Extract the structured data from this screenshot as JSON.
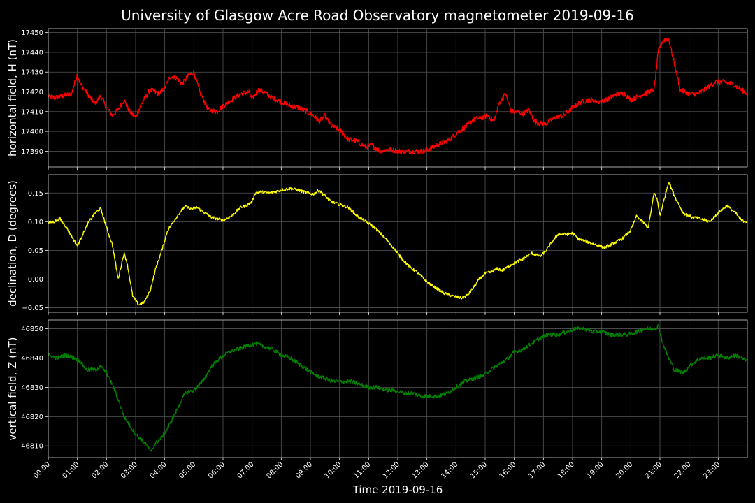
{
  "chart_data": {
    "type": "line",
    "title": "University of Glasgow Acre Road Observatory magnetometer 2019-09-16",
    "xlabel": "Time 2019-09-16",
    "x_ticks": [
      "00:00",
      "01:00",
      "02:00",
      "03:00",
      "04:00",
      "05:00",
      "06:00",
      "07:00",
      "08:00",
      "09:00",
      "10:00",
      "11:00",
      "12:00",
      "13:00",
      "14:00",
      "15:00",
      "16:00",
      "17:00",
      "18:00",
      "19:00",
      "20:00",
      "21:00",
      "22:00",
      "23:00"
    ],
    "xlim_hours": [
      0,
      24
    ],
    "grid": true,
    "panels": [
      {
        "name": "horizontal",
        "ylabel": "horizontal field, H (nT)",
        "color": "#ff0000",
        "ylim": [
          17382,
          17452
        ],
        "yticks": [
          17390,
          17400,
          17410,
          17420,
          17430,
          17440,
          17450
        ],
        "ytick_labels": [
          "17390",
          "17400",
          "17410",
          "17420",
          "17430",
          "17440",
          "17450"
        ],
        "hours": [
          0,
          0.2,
          0.5,
          0.8,
          1.0,
          1.1,
          1.3,
          1.6,
          1.8,
          2.0,
          2.2,
          2.4,
          2.6,
          2.8,
          3.0,
          3.2,
          3.5,
          3.8,
          4.0,
          4.2,
          4.4,
          4.6,
          4.8,
          5.0,
          5.2,
          5.5,
          5.8,
          6.0,
          6.3,
          6.6,
          6.9,
          7.0,
          7.2,
          7.4,
          7.7,
          8.0,
          8.3,
          8.6,
          8.9,
          9.1,
          9.3,
          9.5,
          9.7,
          10.0,
          10.3,
          10.6,
          10.9,
          11.1,
          11.4,
          11.7,
          12.0,
          12.3,
          12.6,
          12.9,
          13.2,
          13.5,
          13.8,
          14.0,
          14.3,
          14.6,
          14.9,
          15.1,
          15.3,
          15.5,
          15.7,
          15.9,
          16.1,
          16.3,
          16.5,
          16.7,
          16.9,
          17.1,
          17.4,
          17.7,
          18.0,
          18.3,
          18.6,
          18.9,
          19.2,
          19.5,
          19.8,
          20.0,
          20.3,
          20.6,
          20.8,
          20.95,
          21.1,
          21.3,
          21.5,
          21.7,
          22.0,
          22.3,
          22.6,
          22.9,
          23.2,
          23.5,
          23.8,
          24.0
        ],
        "values": [
          17418,
          17417,
          17418,
          17419,
          17429,
          17424,
          17420,
          17414,
          17418,
          17412,
          17408,
          17411,
          17416,
          17410,
          17407,
          17414,
          17421,
          17419,
          17422,
          17428,
          17427,
          17424,
          17428,
          17430,
          17420,
          17411,
          17410,
          17413,
          17416,
          17419,
          17420,
          17416,
          17421,
          17420,
          17417,
          17415,
          17413,
          17412,
          17410,
          17408,
          17405,
          17408,
          17403,
          17401,
          17396,
          17395,
          17392,
          17393,
          17390,
          17391,
          17390,
          17390,
          17390,
          17390,
          17392,
          17394,
          17396,
          17399,
          17402,
          17406,
          17407,
          17408,
          17405,
          17415,
          17419,
          17410,
          17410,
          17409,
          17411,
          17405,
          17404,
          17404,
          17407,
          17408,
          17412,
          17415,
          17416,
          17415,
          17416,
          17419,
          17419,
          17416,
          17418,
          17420,
          17421,
          17441,
          17446,
          17447,
          17434,
          17421,
          17419,
          17419,
          17422,
          17425,
          17425,
          17424,
          17421,
          17419
        ],
        "noise": 1.3
      },
      {
        "name": "declination",
        "ylabel": "declination, D (degrees)",
        "color": "#ffff00",
        "ylim": [
          -0.058,
          0.182
        ],
        "yticks": [
          -0.05,
          0.0,
          0.05,
          0.1,
          0.15
        ],
        "ytick_labels": [
          "−0.05",
          "0.00",
          "0.05",
          "0.10",
          "0.15"
        ],
        "hours": [
          0,
          0.2,
          0.4,
          0.6,
          0.8,
          1.0,
          1.2,
          1.4,
          1.6,
          1.8,
          2.0,
          2.2,
          2.4,
          2.6,
          2.7,
          2.9,
          3.1,
          3.3,
          3.5,
          3.7,
          3.9,
          4.1,
          4.3,
          4.5,
          4.7,
          4.9,
          5.1,
          5.3,
          5.6,
          6.0,
          6.3,
          6.6,
          6.8,
          7.0,
          7.1,
          7.3,
          7.6,
          8.0,
          8.3,
          8.6,
          8.9,
          9.1,
          9.3,
          9.5,
          9.7,
          10.0,
          10.3,
          10.6,
          10.9,
          11.2,
          11.5,
          11.8,
          12.1,
          12.4,
          12.7,
          13.0,
          13.3,
          13.6,
          13.9,
          14.2,
          14.4,
          14.6,
          14.8,
          15.0,
          15.2,
          15.4,
          15.6,
          15.8,
          16.0,
          16.3,
          16.6,
          16.9,
          17.1,
          17.3,
          17.5,
          17.8,
          18.0,
          18.2,
          18.5,
          18.8,
          19.1,
          19.4,
          19.7,
          20.0,
          20.2,
          20.4,
          20.6,
          20.8,
          20.9,
          21.0,
          21.1,
          21.3,
          21.5,
          21.8,
          22.1,
          22.4,
          22.7,
          23.0,
          23.3,
          23.6,
          23.8,
          24.0
        ],
        "values": [
          0.098,
          0.1,
          0.105,
          0.092,
          0.075,
          0.058,
          0.08,
          0.1,
          0.115,
          0.123,
          0.09,
          0.06,
          0.0,
          0.045,
          0.03,
          -0.03,
          -0.045,
          -0.04,
          -0.02,
          0.02,
          0.05,
          0.085,
          0.1,
          0.115,
          0.127,
          0.122,
          0.125,
          0.118,
          0.108,
          0.102,
          0.11,
          0.125,
          0.128,
          0.135,
          0.15,
          0.152,
          0.15,
          0.155,
          0.158,
          0.155,
          0.15,
          0.148,
          0.155,
          0.145,
          0.135,
          0.13,
          0.125,
          0.11,
          0.1,
          0.09,
          0.075,
          0.058,
          0.038,
          0.022,
          0.01,
          -0.005,
          -0.015,
          -0.025,
          -0.03,
          -0.033,
          -0.028,
          -0.015,
          0.0,
          0.01,
          0.012,
          0.018,
          0.015,
          0.022,
          0.028,
          0.035,
          0.045,
          0.04,
          0.05,
          0.065,
          0.078,
          0.078,
          0.08,
          0.07,
          0.065,
          0.06,
          0.055,
          0.062,
          0.07,
          0.085,
          0.11,
          0.1,
          0.09,
          0.15,
          0.14,
          0.11,
          0.13,
          0.17,
          0.145,
          0.115,
          0.108,
          0.105,
          0.1,
          0.115,
          0.128,
          0.115,
          0.102,
          0.1
        ],
        "noise": 0.0025
      },
      {
        "name": "vertical",
        "ylabel": "vertical field, Z (nT)",
        "color": "#008000",
        "ylim": [
          46806,
          46853
        ],
        "yticks": [
          46810,
          46820,
          46830,
          46840,
          46850
        ],
        "ytick_labels": [
          "46810",
          "46820",
          "46830",
          "46840",
          "46850"
        ],
        "hours": [
          0,
          0.3,
          0.6,
          0.9,
          1.1,
          1.3,
          1.6,
          1.8,
          2.0,
          2.2,
          2.4,
          2.6,
          2.8,
          3.0,
          3.2,
          3.4,
          3.5,
          3.7,
          3.9,
          4.1,
          4.3,
          4.5,
          4.7,
          5.0,
          5.3,
          5.6,
          5.9,
          6.2,
          6.5,
          6.8,
          7.1,
          7.4,
          7.7,
          8.0,
          8.3,
          8.6,
          8.9,
          9.2,
          9.5,
          9.8,
          10.1,
          10.4,
          10.7,
          11.0,
          11.3,
          11.6,
          11.9,
          12.2,
          12.5,
          12.8,
          13.1,
          13.4,
          13.7,
          14.0,
          14.3,
          14.6,
          14.9,
          15.2,
          15.5,
          15.8,
          16.0,
          16.3,
          16.6,
          16.9,
          17.2,
          17.5,
          17.8,
          18.1,
          18.4,
          18.7,
          19.0,
          19.3,
          19.6,
          19.9,
          20.2,
          20.5,
          20.8,
          20.95,
          21.1,
          21.3,
          21.5,
          21.8,
          22.1,
          22.4,
          22.7,
          23.0,
          23.3,
          23.6,
          24.0
        ],
        "values": [
          46841,
          46840,
          46841,
          46840,
          46839,
          46836,
          46836,
          46837,
          46835,
          46831,
          46826,
          46820,
          46817,
          46814,
          46812,
          46810,
          46808,
          46811,
          46813,
          46816,
          46820,
          46824,
          46828,
          46829,
          46832,
          46837,
          46840,
          46842,
          46843,
          46844,
          46845,
          46844,
          46843,
          46841,
          46840,
          46838,
          46836,
          46834,
          46833,
          46832,
          46832,
          46832,
          46831,
          46830,
          46830,
          46829,
          46829,
          46828,
          46828,
          46827,
          46827,
          46827,
          46828,
          46830,
          46832,
          46833,
          46834,
          46836,
          46838,
          46840,
          46842,
          46843,
          46845,
          46847,
          46848,
          46848,
          46849,
          46850,
          46850,
          46849,
          46849,
          46848,
          46848,
          46848,
          46849,
          46850,
          46850,
          46851,
          46845,
          46840,
          46836,
          46835,
          46838,
          46840,
          46840,
          46841,
          46840,
          46841,
          46839
        ],
        "noise": 0.7
      }
    ]
  }
}
